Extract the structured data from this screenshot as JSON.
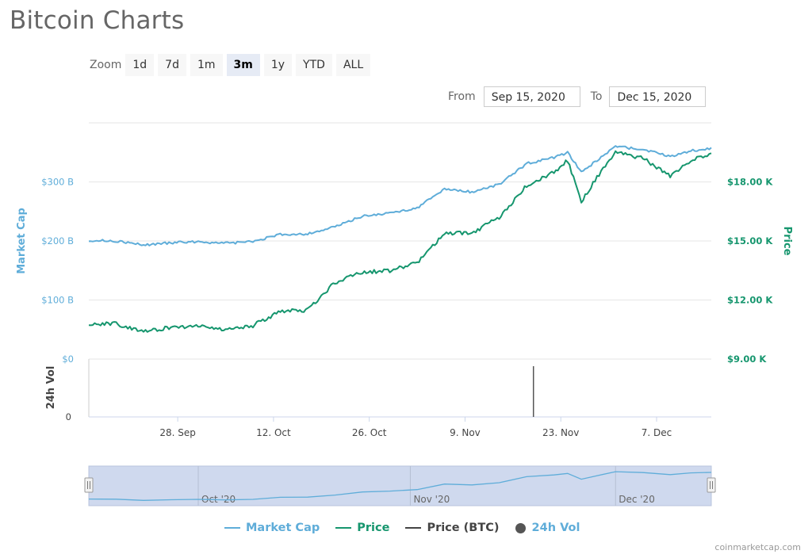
{
  "page_title": "Bitcoin Charts",
  "zoom": {
    "label": "Zoom",
    "buttons": [
      "1d",
      "7d",
      "1m",
      "3m",
      "1y",
      "YTD",
      "ALL"
    ],
    "active": "3m"
  },
  "range": {
    "from_label": "From",
    "from_value": "Sep 15, 2020",
    "to_label": "To",
    "to_value": "Dec 15, 2020"
  },
  "colors": {
    "market_cap": "#5fadd9",
    "price": "#16966e",
    "price_btc": "#444444",
    "volume": "#555555",
    "navigator_bg": "#cfd9ee"
  },
  "chart_data": {
    "type": "line",
    "x": [
      "Sep 15",
      "Sep 19",
      "Sep 23",
      "Sep 27",
      "Oct 1",
      "Oct 5",
      "Oct 9",
      "Oct 13",
      "Oct 17",
      "Oct 21",
      "Oct 25",
      "Oct 29",
      "Nov 2",
      "Nov 6",
      "Nov 10",
      "Nov 14",
      "Nov 18",
      "Nov 22",
      "Nov 24",
      "Nov 26",
      "Nov 28",
      "Dec 1",
      "Dec 5",
      "Dec 9",
      "Dec 12",
      "Dec 15"
    ],
    "series": [
      {
        "name": "Market Cap",
        "axis": "left",
        "unit": "B",
        "values": [
          201,
          200,
          193,
          197,
          199,
          196,
          199,
          211,
          212,
          224,
          242,
          247,
          256,
          288,
          283,
          296,
          331,
          341,
          350,
          316,
          334,
          360,
          355,
          343,
          353,
          356
        ]
      },
      {
        "name": "Price",
        "axis": "right",
        "unit": "K",
        "values": [
          10.8,
          10.8,
          10.4,
          10.6,
          10.7,
          10.5,
          10.7,
          11.4,
          11.5,
          12.9,
          13.4,
          13.5,
          13.9,
          15.4,
          15.4,
          16.2,
          17.8,
          18.5,
          19.1,
          17.0,
          18.1,
          19.5,
          19.2,
          18.3,
          19.1,
          19.4
        ]
      },
      {
        "name": "24h Vol",
        "axis": "volume",
        "spike_x": "Nov 19"
      }
    ],
    "left_axis": {
      "title": "Market Cap",
      "ticks": [
        "$0",
        "$100 B",
        "$200 B",
        "$300 B"
      ],
      "tick_values": [
        0,
        100,
        200,
        300
      ],
      "range": [
        0,
        400
      ]
    },
    "right_axis": {
      "title": "Price",
      "ticks": [
        "$9.00 K",
        "$12.00 K",
        "$15.00 K",
        "$18.00 K"
      ],
      "tick_values": [
        9,
        12,
        15,
        18
      ],
      "range": [
        9,
        21
      ]
    },
    "volume_axis": {
      "title": "24h Vol",
      "ticks": [
        "0"
      ]
    },
    "x_ticks": [
      "28. Sep",
      "12. Oct",
      "26. Oct",
      "9. Nov",
      "23. Nov",
      "7. Dec"
    ],
    "x_tick_dates": [
      "Sep 28",
      "Oct 12",
      "Oct 26",
      "Nov 9",
      "Nov 23",
      "Dec 7"
    ],
    "navigator_labels": [
      "Oct '20",
      "Nov '20",
      "Dec '20"
    ],
    "grid": true,
    "legend": "bottom"
  },
  "legend_items": [
    "Market Cap",
    "Price",
    "Price (BTC)",
    "24h Vol"
  ],
  "credit": "coinmarketcap.com"
}
